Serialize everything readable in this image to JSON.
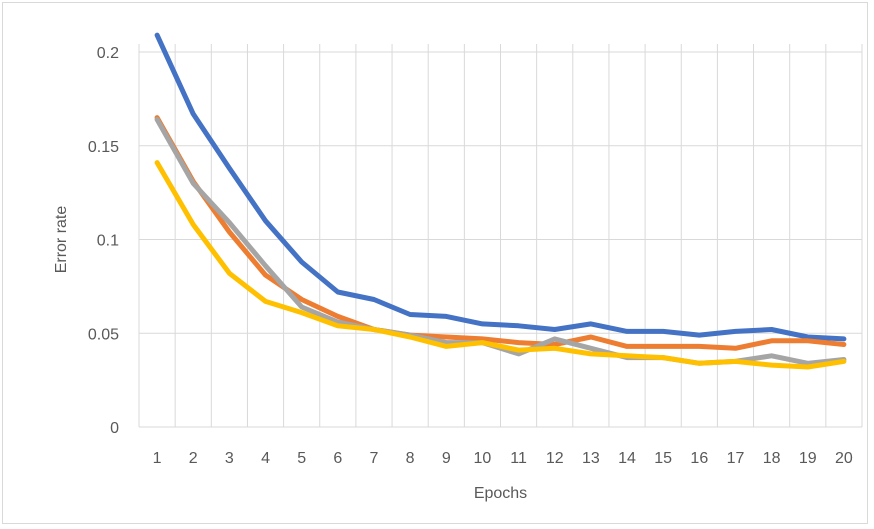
{
  "chart_data": {
    "type": "line",
    "title": "",
    "xlabel": "Epochs",
    "ylabel": "Error rate",
    "x": [
      1,
      2,
      3,
      4,
      5,
      6,
      7,
      8,
      9,
      10,
      11,
      12,
      13,
      14,
      15,
      16,
      17,
      18,
      19,
      20
    ],
    "ylim": [
      0,
      0.2
    ],
    "yticks": [
      "0",
      "0.05",
      "0.1",
      "0.15",
      "0.2"
    ],
    "grid": "vertical and horizontal gridlines",
    "legend": "none",
    "series": [
      {
        "color": "#4472C4",
        "values": [
          0.209,
          0.167,
          0.138,
          0.11,
          0.088,
          0.072,
          0.068,
          0.06,
          0.059,
          0.055,
          0.054,
          0.052,
          0.055,
          0.051,
          0.051,
          0.049,
          0.051,
          0.052,
          0.048,
          0.047
        ]
      },
      {
        "color": "#ED7D31",
        "values": [
          0.165,
          0.131,
          0.104,
          0.081,
          0.068,
          0.059,
          0.052,
          0.049,
          0.048,
          0.047,
          0.045,
          0.044,
          0.048,
          0.043,
          0.043,
          0.043,
          0.042,
          0.046,
          0.046,
          0.044
        ]
      },
      {
        "color": "#A5A5A5",
        "values": [
          0.164,
          0.13,
          0.109,
          0.086,
          0.064,
          0.056,
          0.052,
          0.049,
          0.045,
          0.045,
          0.039,
          0.047,
          0.042,
          0.037,
          0.037,
          0.034,
          0.035,
          0.038,
          0.034,
          0.036
        ]
      },
      {
        "color": "#FFC000",
        "values": [
          0.141,
          0.108,
          0.082,
          0.067,
          0.061,
          0.054,
          0.052,
          0.048,
          0.043,
          0.045,
          0.041,
          0.042,
          0.039,
          0.038,
          0.037,
          0.034,
          0.035,
          0.033,
          0.032,
          0.035
        ]
      }
    ]
  }
}
